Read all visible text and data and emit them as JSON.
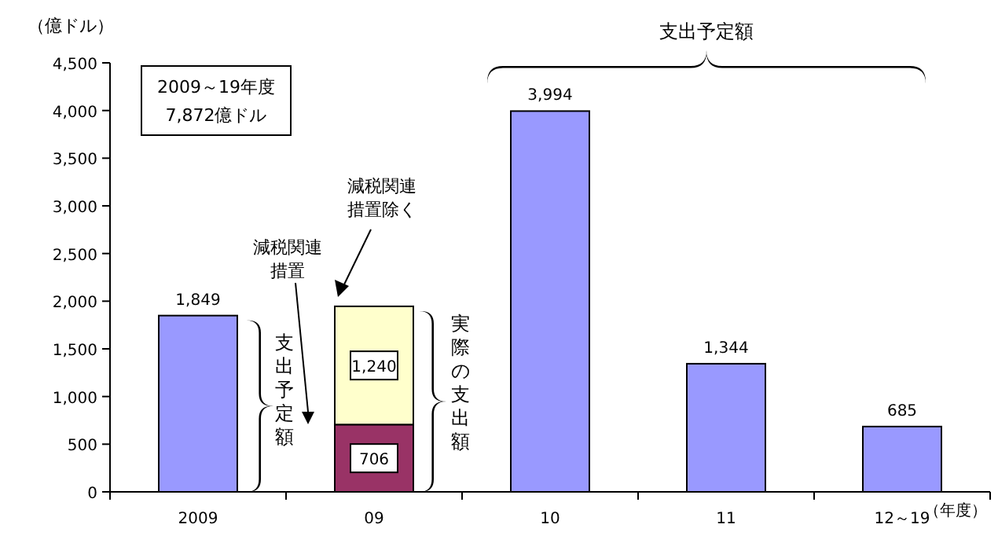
{
  "chart_data": {
    "type": "bar",
    "stacked": true,
    "categories": [
      "2009",
      "09",
      "10",
      "11",
      "12～19"
    ],
    "series": [
      {
        "colors": [
          "#9999ff",
          "#993366",
          "#9999ff",
          "#9999ff",
          "#9999ff"
        ],
        "values": [
          1849,
          706,
          3994,
          1344,
          685
        ],
        "value_labels": [
          "1,849",
          "706",
          "3,994",
          "1,344",
          "685"
        ]
      },
      {
        "color": "#ffffcc",
        "values": [
          null,
          1240,
          null,
          null,
          null
        ],
        "value_labels": [
          null,
          "1,240",
          null,
          null,
          null
        ]
      }
    ],
    "ylim": [
      0,
      4500
    ],
    "yticks": [
      0,
      500,
      {
        "value": 1000,
        "label": "1,000"
      },
      {
        "value": 1500,
        "label": "1,500"
      },
      {
        "value": 2000,
        "label": "2,000"
      },
      {
        "value": 2500,
        "label": "2,500"
      },
      {
        "value": 3000,
        "label": "3,000"
      },
      {
        "value": 3500,
        "label": "3,500"
      },
      {
        "value": 4000,
        "label": "4,000"
      },
      {
        "value": 4500,
        "label": "4,500"
      }
    ],
    "ylabel": "（億ドル）",
    "xlabel": "（年度）",
    "annotations": [
      "2009～19年度",
      "7,872億ドル",
      "支出予定額",
      "支出予定額",
      "減税関連措置",
      "減税関連措置除く",
      "実際の支出額"
    ]
  }
}
